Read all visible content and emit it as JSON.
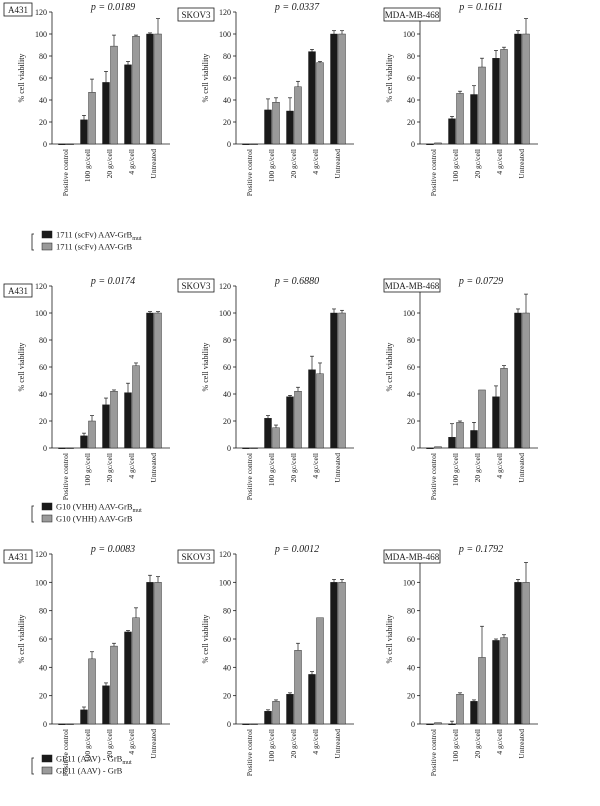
{
  "colors": {
    "mut": "#1a1a1a",
    "grb": "#9a9a9a",
    "axis": "#1a1a1a"
  },
  "chart_data": [
    {
      "type": "bar",
      "cell_line": "A431",
      "p_value": "p = 0.0189",
      "ylabel": "% cell viability",
      "ylim": [
        0,
        120
      ],
      "yticks": [
        0,
        20,
        40,
        60,
        80,
        100,
        120
      ],
      "categories": [
        "Positive control",
        "100 gc/cell",
        "20 gc/cell",
        "4 gc/cell",
        "Untreated"
      ],
      "series": [
        {
          "name": "1711 (scFv) AAV-GrB_mut",
          "values": [
            0,
            22,
            56,
            72,
            100
          ],
          "errors": [
            0,
            4,
            10,
            3,
            1
          ]
        },
        {
          "name": "1711 (scFv) AAV-GrB",
          "values": [
            0,
            47,
            89,
            98,
            100
          ],
          "errors": [
            0,
            12,
            10,
            1,
            14
          ]
        }
      ]
    },
    {
      "type": "bar",
      "cell_line": "SKOV3",
      "p_value": "p = 0.0337",
      "ylabel": "% cell viability",
      "ylim": [
        0,
        120
      ],
      "yticks": [
        0,
        20,
        40,
        60,
        80,
        100,
        120
      ],
      "categories": [
        "Positive control",
        "100 gc/cell",
        "20 gc/cell",
        "4 gc/cell",
        "Untreated"
      ],
      "series": [
        {
          "name": "1711 (scFv) AAV-GrB_mut",
          "values": [
            0,
            31,
            30,
            84,
            100
          ],
          "errors": [
            0,
            10,
            12,
            2,
            3
          ]
        },
        {
          "name": "1711 (scFv) AAV-GrB",
          "values": [
            0,
            38,
            52,
            74,
            100
          ],
          "errors": [
            0,
            4,
            5,
            1,
            3
          ]
        }
      ]
    },
    {
      "type": "bar",
      "cell_line": "MDA-MB-468",
      "p_value": "p = 0.1611",
      "ylabel": "% cell viability",
      "ylim": [
        0,
        120
      ],
      "yticks": [
        0,
        20,
        40,
        60,
        80,
        100,
        120
      ],
      "categories": [
        "Positive control",
        "100 gc/cell",
        "20 gc/cell",
        "4 gc/cell",
        "Untreated"
      ],
      "series": [
        {
          "name": "1711 (scFv) AAV-GrB_mut",
          "values": [
            0,
            23,
            45,
            78,
            100
          ],
          "errors": [
            0,
            2,
            8,
            7,
            3
          ]
        },
        {
          "name": "1711 (scFv) AAV-GrB",
          "values": [
            1,
            46,
            70,
            86,
            100
          ],
          "errors": [
            0,
            2,
            8,
            2,
            14
          ]
        }
      ]
    },
    {
      "type": "bar",
      "cell_line": "A431",
      "p_value": "p = 0.0174",
      "ylabel": "% cell viability",
      "ylim": [
        0,
        120
      ],
      "yticks": [
        0,
        20,
        40,
        60,
        80,
        100,
        120
      ],
      "categories": [
        "Positive control",
        "100 gc/cell",
        "20 gc/cell",
        "4 gc/cell",
        "Untreated"
      ],
      "series": [
        {
          "name": "G10 (VHH) AAV-GrB_mut",
          "values": [
            0,
            9,
            32,
            41,
            100
          ],
          "errors": [
            0,
            2,
            5,
            7,
            1
          ]
        },
        {
          "name": "G10 (VHH) AAV-GrB",
          "values": [
            0,
            20,
            42,
            61,
            100
          ],
          "errors": [
            0,
            4,
            1,
            2,
            1
          ]
        }
      ]
    },
    {
      "type": "bar",
      "cell_line": "SKOV3",
      "p_value": "p = 0.6880",
      "ylabel": "% cell viability",
      "ylim": [
        0,
        120
      ],
      "yticks": [
        0,
        20,
        40,
        60,
        80,
        100,
        120
      ],
      "categories": [
        "Positive control",
        "100 gc/cell",
        "20 gc/cell",
        "4 gc/cell",
        "Untreated"
      ],
      "series": [
        {
          "name": "G10 (VHH) AAV-GrB_mut",
          "values": [
            0,
            22,
            38,
            58,
            100
          ],
          "errors": [
            0,
            2,
            1,
            10,
            3
          ]
        },
        {
          "name": "G10 (VHH) AAV-GrB",
          "values": [
            0,
            15,
            42,
            55,
            100
          ],
          "errors": [
            0,
            2,
            3,
            8,
            2
          ]
        }
      ]
    },
    {
      "type": "bar",
      "cell_line": "MDA-MB-468",
      "p_value": "p = 0.0729",
      "ylabel": "% cell viability",
      "ylim": [
        0,
        120
      ],
      "yticks": [
        0,
        20,
        40,
        60,
        80,
        100,
        120
      ],
      "categories": [
        "Positive control",
        "100 gc/cell",
        "20 gc/cell",
        "4 gc/cell",
        "Untreated"
      ],
      "series": [
        {
          "name": "G10 (VHH) AAV-GrB_mut",
          "values": [
            0,
            8,
            13,
            38,
            100
          ],
          "errors": [
            0,
            10,
            6,
            8,
            3
          ]
        },
        {
          "name": "G10 (VHH) AAV-GrB",
          "values": [
            1,
            19,
            43,
            59,
            100
          ],
          "errors": [
            0,
            1,
            0,
            2,
            14
          ]
        }
      ]
    },
    {
      "type": "bar",
      "cell_line": "A431",
      "p_value": "p = 0.0083",
      "ylabel": "% cell viability",
      "ylim": [
        0,
        120
      ],
      "yticks": [
        0,
        20,
        40,
        60,
        80,
        100,
        120
      ],
      "categories": [
        "Positive control",
        "100 gc/cell",
        "20 gc/cell",
        "4 gc/cell",
        "Untreated"
      ],
      "series": [
        {
          "name": "GE11 (AAV) - GrB_mut",
          "values": [
            0,
            10,
            27,
            65,
            100
          ],
          "errors": [
            0,
            2,
            2,
            1,
            5
          ]
        },
        {
          "name": "GE11 (AAV) - GrB",
          "values": [
            0,
            46,
            55,
            75,
            100
          ],
          "errors": [
            0,
            5,
            2,
            7,
            4
          ]
        }
      ]
    },
    {
      "type": "bar",
      "cell_line": "SKOV3",
      "p_value": "p = 0.0012",
      "ylabel": "% cell viability",
      "ylim": [
        0,
        120
      ],
      "yticks": [
        0,
        20,
        40,
        60,
        80,
        100,
        120
      ],
      "categories": [
        "Positive control",
        "100 gc/cell",
        "20 gc/cell",
        "4 gc/cell",
        "Untreated"
      ],
      "series": [
        {
          "name": "GE11 (AAV) - GrB_mut",
          "values": [
            0,
            9,
            21,
            35,
            100
          ],
          "errors": [
            0,
            1,
            1,
            2,
            2
          ]
        },
        {
          "name": "GE11 (AAV) - GrB",
          "values": [
            0,
            16,
            52,
            75,
            100
          ],
          "errors": [
            0,
            1,
            5,
            0,
            2
          ]
        }
      ]
    },
    {
      "type": "bar",
      "cell_line": "MDA-MB-468",
      "p_value": "p = 0.1792",
      "ylabel": "% cell viability",
      "ylim": [
        0,
        120
      ],
      "yticks": [
        0,
        20,
        40,
        60,
        80,
        100,
        120
      ],
      "categories": [
        "Positive control",
        "100 gc/cell",
        "20 gc/cell",
        "4 gc/cell",
        "Untreated"
      ],
      "series": [
        {
          "name": "GE11 (AAV) - GrB_mut",
          "values": [
            0,
            0,
            16,
            59,
            100
          ],
          "errors": [
            0,
            2,
            1,
            1,
            2
          ]
        },
        {
          "name": "GE11 (AAV) - GrB",
          "values": [
            1,
            21,
            47,
            61,
            100
          ],
          "errors": [
            0,
            1,
            22,
            2,
            14
          ]
        }
      ]
    }
  ],
  "legends": [
    {
      "items": [
        {
          "base": "1711 (scFv) AAV-GrB",
          "sub": "mut"
        },
        {
          "base": "1711 (scFv) AAV-GrB",
          "sub": ""
        }
      ]
    },
    {
      "items": [
        {
          "base": "G10 (VHH) AAV-GrB",
          "sub": "mut"
        },
        {
          "base": "G10 (VHH) AAV-GrB",
          "sub": ""
        }
      ]
    },
    {
      "items": [
        {
          "base": "GE11 (AAV) - GrB",
          "sub": "mut"
        },
        {
          "base": "GE11 (AAV) - GrB",
          "sub": ""
        }
      ]
    }
  ]
}
